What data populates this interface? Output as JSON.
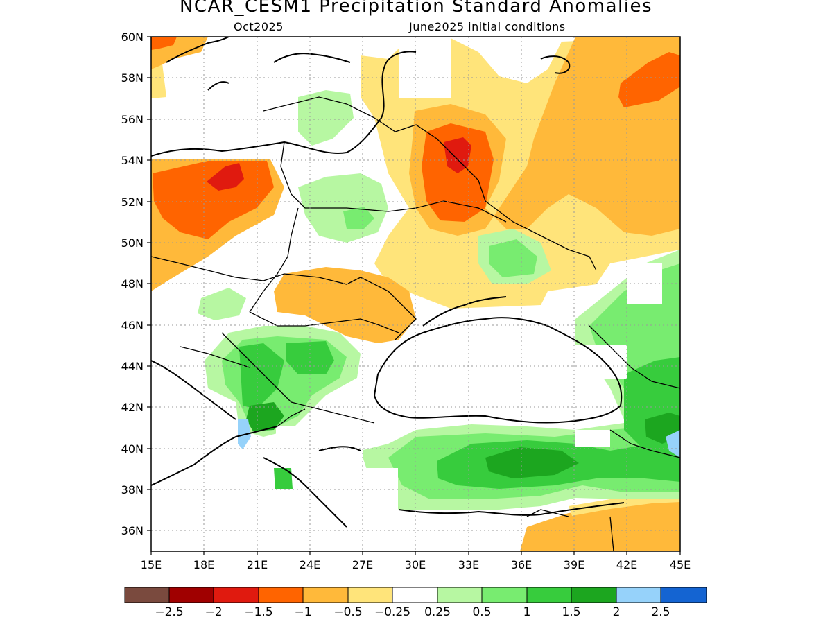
{
  "title": "NCAR_CESM1 Precipitation Standard Anomalies",
  "subtitle_left": "Oct2025",
  "subtitle_right": "June2025 initial conditions",
  "map": {
    "lon_range": [
      15,
      45
    ],
    "lat_range": [
      35,
      60
    ],
    "lon_ticks": [
      15,
      18,
      21,
      24,
      27,
      30,
      33,
      36,
      39,
      42,
      45
    ],
    "lon_tick_labels": [
      "15E",
      "18E",
      "21E",
      "24E",
      "27E",
      "30E",
      "33E",
      "36E",
      "39E",
      "42E",
      "45E"
    ],
    "lat_ticks": [
      36,
      38,
      40,
      42,
      44,
      46,
      48,
      50,
      52,
      54,
      56,
      58,
      60
    ],
    "lat_tick_labels": [
      "36N",
      "38N",
      "40N",
      "42N",
      "44N",
      "46N",
      "48N",
      "50N",
      "52N",
      "54N",
      "56N",
      "58N",
      "60N"
    ],
    "grid": "dotted"
  },
  "colorbar": {
    "colors": [
      "#7a4a3e",
      "#a00000",
      "#e01a0f",
      "#ff6400",
      "#ffb93a",
      "#ffe47a",
      "#ffffff",
      "#b7f7a2",
      "#78ec70",
      "#37cc3d",
      "#1ca61f",
      "#96d2fa",
      "#1464d2"
    ],
    "labels": [
      "−2.5",
      "−2",
      "−1.5",
      "−1",
      "−0.5",
      "−0.25",
      "0.25",
      "0.5",
      "1",
      "1.5",
      "2",
      "2.5"
    ]
  }
}
